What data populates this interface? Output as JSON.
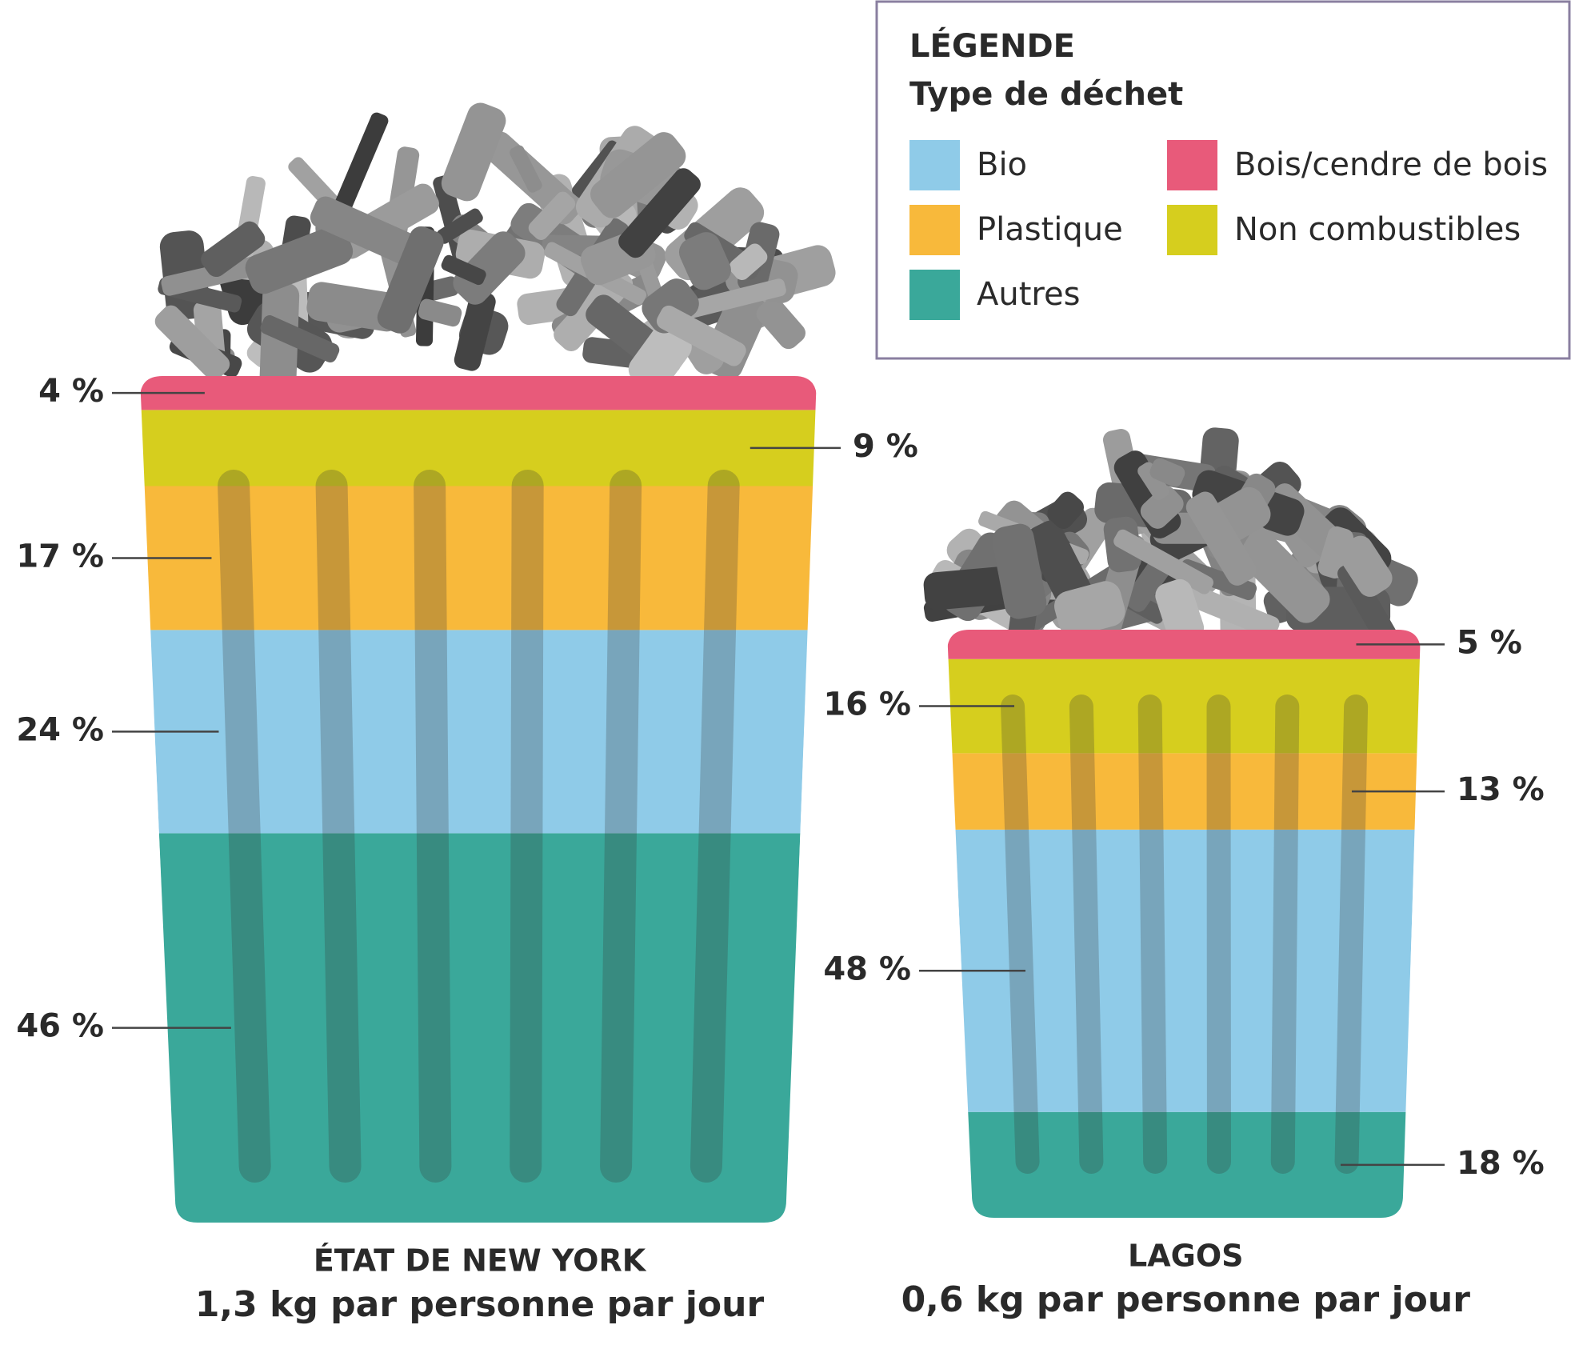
{
  "chart_data": {
    "type": "stacked_bin",
    "legend_title": "LÉGENDE",
    "legend_subtitle": "Type de déchet",
    "categories": [
      "ÉTAT DE NEW YORK",
      "LAGOS"
    ],
    "subtitles": [
      "1,3 kg par personne par jour",
      "0,6 kg par personne par jour"
    ],
    "series": [
      {
        "name": "Autres",
        "color": "#3aa89a",
        "values": [
          46,
          18
        ],
        "value_labels": [
          "46 %",
          "18 %"
        ]
      },
      {
        "name": "Bio",
        "color": "#8fcbe8",
        "values": [
          24,
          48
        ],
        "value_labels": [
          "24 %",
          "48 %"
        ]
      },
      {
        "name": "Plastique",
        "color": "#f8b93b",
        "values": [
          17,
          13
        ],
        "value_labels": [
          "17 %",
          "13 %"
        ]
      },
      {
        "name": "Non combustibles",
        "color": "#d6ce1e",
        "values": [
          9,
          16
        ],
        "value_labels": [
          "9 %",
          "16 %"
        ]
      },
      {
        "name": "Bois/cendre de bois",
        "color": "#e85a7a",
        "values": [
          4,
          5
        ],
        "value_labels": [
          "4 %",
          "5 %"
        ]
      }
    ]
  }
}
